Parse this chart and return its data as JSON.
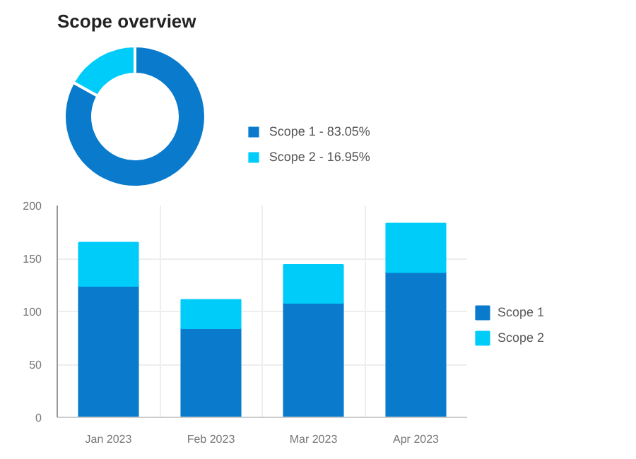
{
  "chart_data": [
    {
      "type": "donut",
      "title": "Scope overview",
      "categories": [
        "Scope 1 - 83.05%",
        "Scope 2 - 16.95%"
      ],
      "values": [
        83.05,
        16.95
      ],
      "colors": [
        "#0a7bcc",
        "#00ccfa"
      ],
      "legend": "right"
    },
    {
      "type": "bar",
      "stacked": true,
      "categories": [
        "Jan 2023",
        "Feb 2023",
        "Mar 2023",
        "Apr 2023"
      ],
      "series": [
        {
          "name": "Scope 1",
          "color": "#0a7bcc",
          "values": [
            124,
            84,
            108,
            137
          ]
        },
        {
          "name": "Scope 2",
          "color": "#00ccfa",
          "values": [
            41,
            27,
            36,
            46
          ]
        }
      ],
      "ylim": [
        0,
        200
      ],
      "yticks": [
        0,
        50,
        100,
        150,
        200
      ],
      "grid": true,
      "legend": "right"
    }
  ]
}
